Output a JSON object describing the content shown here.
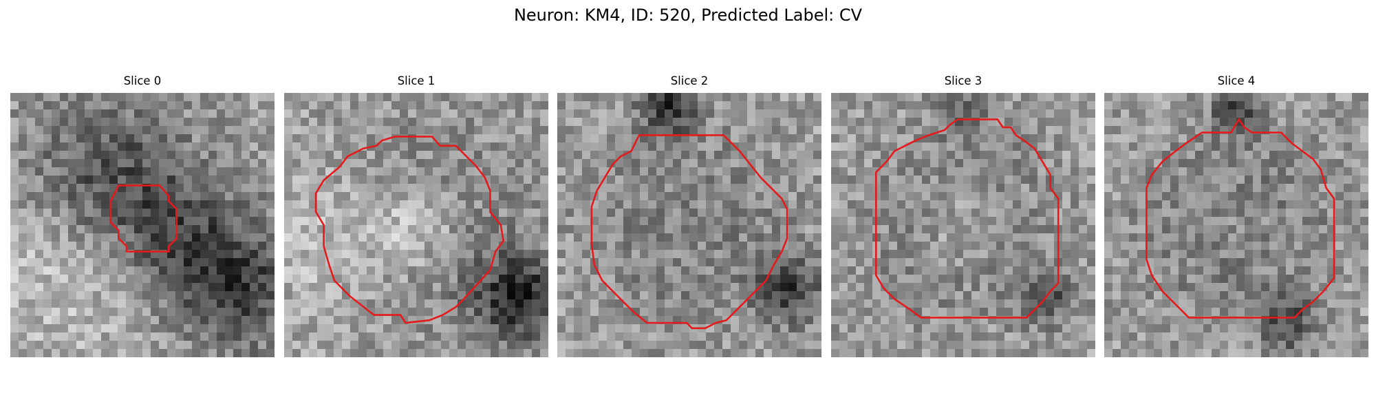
{
  "figure": {
    "title": "Neuron: KM4, ID: 520, Predicted Label: CV"
  },
  "panels": [
    {
      "title": "Slice 0",
      "seed": 11,
      "blob": [
        [
          -0.3,
          -0.35,
          0.9,
          -1.0
        ],
        [
          0.25,
          0.05,
          0.7,
          -0.7
        ],
        [
          0.7,
          0.45,
          0.7,
          -1.1
        ],
        [
          -0.55,
          0.2,
          1.1,
          0.5
        ]
      ],
      "contour": [
        [
          -0.18,
          -0.3
        ],
        [
          0.13,
          -0.3
        ],
        [
          0.2,
          -0.22
        ],
        [
          0.2,
          -0.18
        ],
        [
          0.26,
          -0.12
        ],
        [
          0.26,
          0.1
        ],
        [
          0.2,
          0.16
        ],
        [
          0.2,
          0.2
        ],
        [
          -0.12,
          0.2
        ],
        [
          -0.12,
          0.16
        ],
        [
          -0.18,
          0.1
        ],
        [
          -0.18,
          0.04
        ],
        [
          -0.24,
          -0.02
        ],
        [
          -0.24,
          -0.18
        ]
      ]
    },
    {
      "title": "Slice 1",
      "seed": 23,
      "blob": [
        [
          0.0,
          0.0,
          0.55,
          0.7
        ],
        [
          0.0,
          0.0,
          1.05,
          -0.55
        ],
        [
          0.78,
          0.55,
          0.5,
          -1.3
        ],
        [
          -0.6,
          0.1,
          0.9,
          0.5
        ]
      ],
      "contour": [
        [
          -0.16,
          -0.67
        ],
        [
          0.12,
          -0.67
        ],
        [
          0.18,
          -0.6
        ],
        [
          0.3,
          -0.6
        ],
        [
          0.4,
          -0.5
        ],
        [
          0.45,
          -0.45
        ],
        [
          0.52,
          -0.36
        ],
        [
          0.56,
          -0.26
        ],
        [
          0.56,
          -0.1
        ],
        [
          0.64,
          0.0
        ],
        [
          0.66,
          0.12
        ],
        [
          0.6,
          0.2
        ],
        [
          0.56,
          0.34
        ],
        [
          0.36,
          0.56
        ],
        [
          0.3,
          0.62
        ],
        [
          0.2,
          0.68
        ],
        [
          0.1,
          0.72
        ],
        [
          -0.08,
          0.74
        ],
        [
          -0.12,
          0.68
        ],
        [
          -0.32,
          0.68
        ],
        [
          -0.5,
          0.54
        ],
        [
          -0.62,
          0.42
        ],
        [
          -0.66,
          0.3
        ],
        [
          -0.7,
          0.16
        ],
        [
          -0.7,
          0.0
        ],
        [
          -0.76,
          -0.1
        ],
        [
          -0.76,
          -0.24
        ],
        [
          -0.7,
          -0.34
        ],
        [
          -0.58,
          -0.44
        ],
        [
          -0.52,
          -0.52
        ],
        [
          -0.4,
          -0.58
        ],
        [
          -0.3,
          -0.6
        ],
        [
          -0.26,
          -0.64
        ]
      ]
    },
    {
      "title": "Slice 2",
      "seed": 37,
      "blob": [
        [
          0.0,
          0.0,
          0.65,
          0.35
        ],
        [
          0.0,
          0.0,
          1.0,
          -0.6
        ],
        [
          -0.15,
          -0.9,
          0.3,
          -1.2
        ],
        [
          0.75,
          0.5,
          0.35,
          -1.1
        ]
      ],
      "contour": [
        [
          -0.38,
          -0.68
        ],
        [
          0.26,
          -0.68
        ],
        [
          0.34,
          -0.6
        ],
        [
          0.38,
          -0.56
        ],
        [
          0.46,
          -0.46
        ],
        [
          0.54,
          -0.36
        ],
        [
          0.62,
          -0.28
        ],
        [
          0.7,
          -0.2
        ],
        [
          0.74,
          -0.12
        ],
        [
          0.74,
          0.1
        ],
        [
          0.7,
          0.2
        ],
        [
          0.64,
          0.3
        ],
        [
          0.58,
          0.42
        ],
        [
          0.48,
          0.52
        ],
        [
          0.4,
          0.6
        ],
        [
          0.34,
          0.66
        ],
        [
          0.28,
          0.72
        ],
        [
          0.2,
          0.74
        ],
        [
          0.12,
          0.78
        ],
        [
          0.02,
          0.78
        ],
        [
          -0.02,
          0.74
        ],
        [
          -0.32,
          0.74
        ],
        [
          -0.42,
          0.66
        ],
        [
          -0.5,
          0.58
        ],
        [
          -0.58,
          0.5
        ],
        [
          -0.66,
          0.42
        ],
        [
          -0.72,
          0.3
        ],
        [
          -0.74,
          0.14
        ],
        [
          -0.74,
          -0.14
        ],
        [
          -0.7,
          -0.26
        ],
        [
          -0.64,
          -0.36
        ],
        [
          -0.58,
          -0.46
        ],
        [
          -0.52,
          -0.52
        ],
        [
          -0.44,
          -0.56
        ]
      ]
    },
    {
      "title": "Slice 3",
      "seed": 53,
      "blob": [
        [
          0.0,
          0.0,
          0.6,
          0.75
        ],
        [
          0.0,
          0.0,
          0.9,
          -0.7
        ],
        [
          0.62,
          0.55,
          0.3,
          -0.9
        ],
        [
          0.0,
          -0.85,
          0.3,
          -0.5
        ]
      ],
      "contour": [
        [
          -0.04,
          -0.8
        ],
        [
          0.26,
          -0.8
        ],
        [
          0.3,
          -0.74
        ],
        [
          0.36,
          -0.74
        ],
        [
          0.4,
          -0.68
        ],
        [
          0.46,
          -0.64
        ],
        [
          0.54,
          -0.58
        ],
        [
          0.6,
          -0.48
        ],
        [
          0.66,
          -0.38
        ],
        [
          0.66,
          -0.28
        ],
        [
          0.72,
          -0.2
        ],
        [
          0.72,
          0.44
        ],
        [
          0.66,
          0.5
        ],
        [
          0.6,
          0.58
        ],
        [
          0.54,
          0.64
        ],
        [
          0.48,
          0.7
        ],
        [
          -0.32,
          0.7
        ],
        [
          -0.4,
          0.64
        ],
        [
          -0.52,
          0.56
        ],
        [
          -0.6,
          0.48
        ],
        [
          -0.66,
          0.38
        ],
        [
          -0.66,
          -0.4
        ],
        [
          -0.58,
          -0.48
        ],
        [
          -0.52,
          -0.56
        ],
        [
          -0.44,
          -0.6
        ],
        [
          -0.36,
          -0.64
        ],
        [
          -0.26,
          -0.68
        ],
        [
          -0.14,
          -0.72
        ],
        [
          -0.1,
          -0.76
        ]
      ]
    },
    {
      "title": "Slice 4",
      "seed": 71,
      "blob": [
        [
          0.0,
          0.0,
          0.6,
          0.55
        ],
        [
          0.0,
          0.0,
          0.9,
          -0.75
        ],
        [
          0.0,
          -0.85,
          0.25,
          -1.0
        ],
        [
          0.4,
          0.75,
          0.3,
          -0.9
        ]
      ],
      "contour": [
        [
          0.02,
          -0.8
        ],
        [
          0.06,
          -0.74
        ],
        [
          0.12,
          -0.7
        ],
        [
          0.34,
          -0.7
        ],
        [
          0.42,
          -0.62
        ],
        [
          0.5,
          -0.56
        ],
        [
          0.58,
          -0.5
        ],
        [
          0.64,
          -0.42
        ],
        [
          0.68,
          -0.28
        ],
        [
          0.74,
          -0.2
        ],
        [
          0.74,
          0.4
        ],
        [
          0.66,
          0.5
        ],
        [
          0.58,
          0.58
        ],
        [
          0.5,
          0.64
        ],
        [
          0.44,
          0.7
        ],
        [
          -0.36,
          0.7
        ],
        [
          -0.44,
          0.62
        ],
        [
          -0.56,
          0.5
        ],
        [
          -0.64,
          0.38
        ],
        [
          -0.68,
          0.26
        ],
        [
          -0.68,
          -0.28
        ],
        [
          -0.64,
          -0.38
        ],
        [
          -0.56,
          -0.48
        ],
        [
          -0.46,
          -0.56
        ],
        [
          -0.38,
          -0.62
        ],
        [
          -0.26,
          -0.7
        ],
        [
          -0.04,
          -0.7
        ]
      ]
    }
  ]
}
